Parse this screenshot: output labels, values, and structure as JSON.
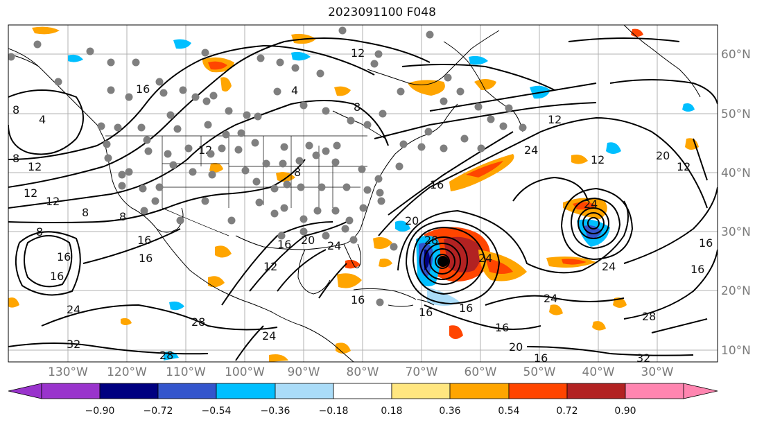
{
  "title": "2023091100 F048",
  "lat_labels": [
    "60°N",
    "50°N",
    "40°N",
    "30°N",
    "20°N",
    "10°N"
  ],
  "lon_labels": [
    "130°W",
    "120°W",
    "110°W",
    "100°W",
    "90°W",
    "80°W",
    "70°W",
    "60°W",
    "50°W",
    "40°W",
    "30°W"
  ],
  "colorbar": {
    "ticks": [
      "−0.90",
      "−0.72",
      "−0.54",
      "−0.36",
      "−0.18",
      "0.18",
      "0.36",
      "0.54",
      "0.72",
      "0.90"
    ],
    "colors": [
      "#9933cc",
      "#000080",
      "#3355cc",
      "#00bfff",
      "#aadcf8",
      "#ffffff",
      "#ffe680",
      "#ffa500",
      "#ff4500",
      "#b22222",
      "#ff85b0"
    ]
  },
  "contour_labels": [
    "4",
    "8",
    "12",
    "16",
    "20",
    "24",
    "28",
    "32"
  ],
  "colors": {
    "contour": "#000000",
    "station": "#7f7f7f",
    "gridline": "#b0b0b0",
    "hurricane_center": "#000000"
  }
}
